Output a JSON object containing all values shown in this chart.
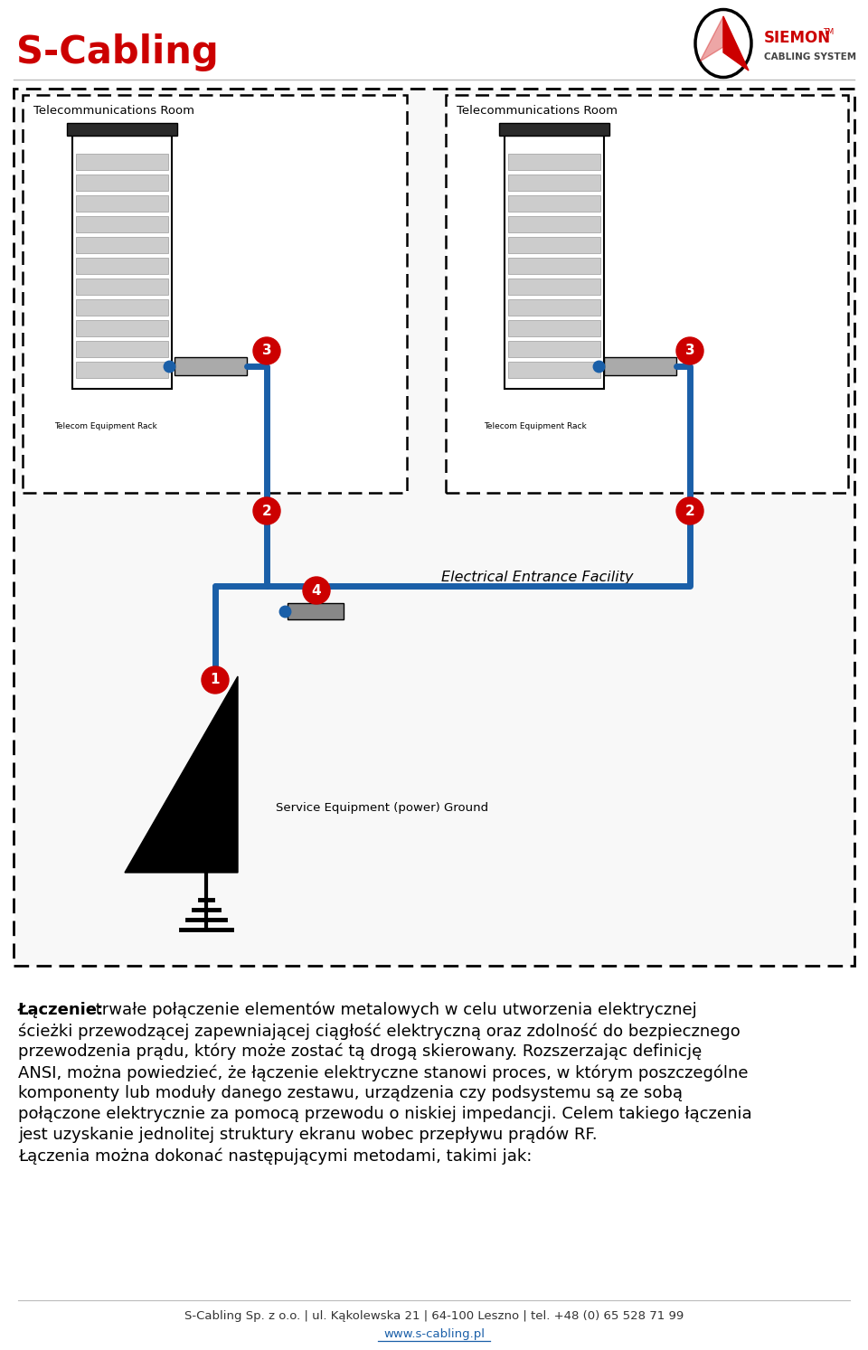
{
  "bg_color": "#ffffff",
  "title": "S-Cabling",
  "title_color": "#cc0000",
  "title_fontsize": 30,
  "footer_line1": "S-Cabling Sp. z o.o. | ul. Kąkolewska 21 | 64-100 Leszno | tel. +48 (0) 65 528 71 99",
  "footer_line2": "www.s-cabling.pl",
  "para_bold": "Łączenie:",
  "para_line2": "Łączenia można dokonać następującymi metodami, takimi jak:",
  "telecom_room": "Telecommunications Room",
  "elec_facility": "Electrical Entrance Facility",
  "service_ground": "Service Equipment (power) Ground",
  "telecom_rack": "Telecom Equipment Rack",
  "siemon_text": "SIEMON",
  "siemon_sub": "CABLING SYSTEM",
  "red_color": "#cc0000",
  "blue_color": "#1a5fa8",
  "black_color": "#000000",
  "body_fontsize": 13,
  "para_lines": [
    " trwałe połączenie elementów metalowych w celu utworzenia elektrycznej",
    "ścieżki przewodzącej zapewniającej ciągłość elektryczną oraz zdolność do bezpiecznego",
    "przewodzenia prądu, który może zostać tą drogą skierowany. Rozszerzając definicję",
    "ANSI, można powiedzieć, że łączenie elektryczne stanowi proces, w którym poszczególne",
    "komponenty lub moduły danego zestawu, urządzenia czy podsystemu są ze sobą",
    "połączone elektrycznie za pomocą przewodu o niskiej impedancji. Celem takiego łączenia",
    "jest uzyskanie jednolitej struktury ekranu wobec przepływu prądów RF."
  ]
}
